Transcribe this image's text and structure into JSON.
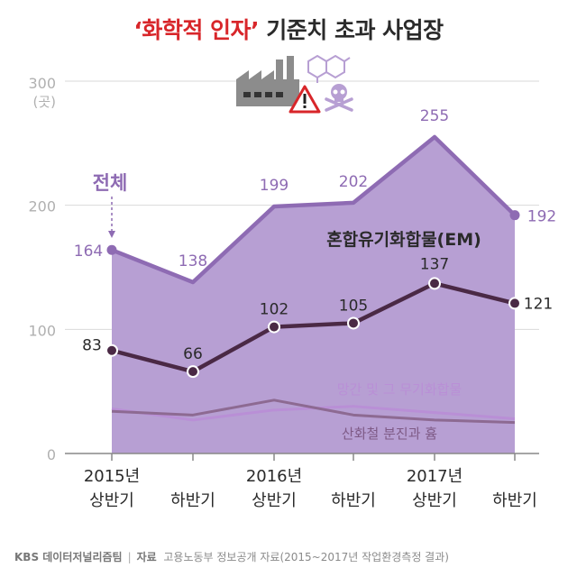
{
  "title": {
    "highlight": "‘화학적 인자’",
    "rest": " 기준치 초과 사업장"
  },
  "footer": {
    "brand": "KBS 데이터저널리즘팀",
    "separator": "|",
    "source_label": "자료",
    "source_text": "고용노동부 정보공개 자료(2015~2017년 작업환경측정 결과)"
  },
  "chart_data": {
    "type": "area",
    "title": "‘화학적 인자’ 기준치 초과 사업장",
    "ylabel": "300\n(곳)",
    "ylim": [
      0,
      300
    ],
    "yticks": [
      0,
      100,
      200,
      300
    ],
    "ytick_labels": [
      "0",
      "100",
      "200",
      "300"
    ],
    "y_unit": "(곳)",
    "categories": [
      [
        "2015년",
        "상반기"
      ],
      [
        "",
        "하반기"
      ],
      [
        "2016년",
        "상반기"
      ],
      [
        "",
        "하반기"
      ],
      [
        "2017년",
        "상반기"
      ],
      [
        "",
        "하반기"
      ]
    ],
    "grid": true,
    "series": [
      {
        "name": "전체",
        "style": "area",
        "color": "#8e6bb3",
        "fill": "#b79fd3",
        "values": [
          164,
          138,
          199,
          202,
          255,
          192
        ],
        "labels": [
          "164",
          "138",
          "199",
          "202",
          "255",
          "192"
        ],
        "annotation": "전체"
      },
      {
        "name": "혼합유기화합물(EM)",
        "style": "line-markers",
        "color": "#4a2945",
        "values": [
          83,
          66,
          102,
          105,
          137,
          121
        ],
        "labels": [
          "83",
          "66",
          "102",
          "105",
          "137",
          "121"
        ]
      },
      {
        "name": "망간 및 그 무기화합물",
        "style": "line",
        "color": "#b98fd6",
        "values": [
          36,
          27,
          35,
          38,
          33,
          28
        ]
      },
      {
        "name": "산화철 분진과 흄",
        "style": "line",
        "color": "#8d6a92",
        "values": [
          34,
          31,
          43,
          31,
          27,
          25
        ]
      }
    ],
    "colors": {
      "grid": "#d9d9d9",
      "tick_label": "#b0b0b0",
      "axis": "#888888",
      "total_label": "#8e6bb3",
      "em_label": "#2a2a2a",
      "manganese_label": "#b98fd6",
      "iron_label": "#7e5a86"
    },
    "icons": [
      "factory-icon",
      "warning-icon",
      "molecule-icon",
      "skull-crossbones-icon"
    ]
  }
}
